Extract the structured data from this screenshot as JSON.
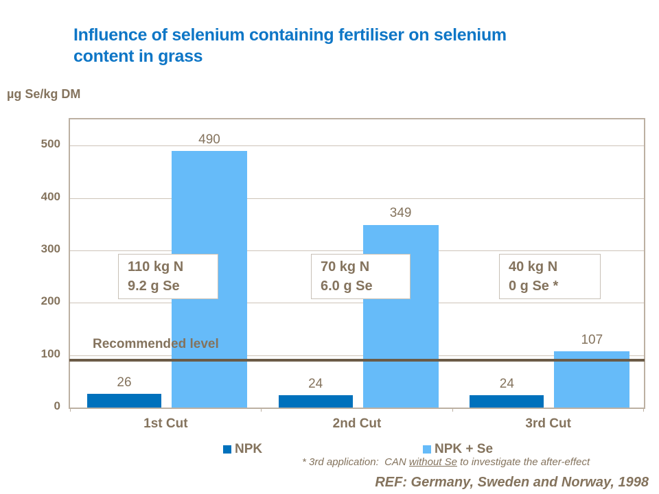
{
  "colors": {
    "title_blue": "#0E76C6",
    "text_brown": "#84735D",
    "dark_brown": "#6B5B47",
    "axis_gray": "#BCB0A2",
    "grid_gray": "#CDC3B8",
    "box_border": "#C8C0B6"
  },
  "slide": {
    "title": "Influence of selenium containing fertiliser on selenium content in grass",
    "y_axis_unit_label": "µg Se/kg DM",
    "footnote_prefix": "* 3rd application:  CAN ",
    "footnote_underlined": "without Se",
    "footnote_suffix": " to investigate the after-effect",
    "reference": "REF: Germany, Sweden and Norway, 1998"
  },
  "chart_data": {
    "type": "bar",
    "title": "Influence of selenium containing fertiliser on selenium content in grass",
    "ylabel": "µg Se/kg DM",
    "xlabel": "",
    "categories": [
      "1st Cut",
      "2nd Cut",
      "3rd Cut"
    ],
    "series": [
      {
        "name": "NPK",
        "color": "#0071BC",
        "values": [
          26,
          24,
          24
        ]
      },
      {
        "name": "NPK + Se",
        "color": "#66BBF9",
        "values": [
          490,
          349,
          107
        ]
      }
    ],
    "ylim": [
      0,
      550
    ],
    "yticks": [
      0,
      100,
      200,
      300,
      400,
      500
    ],
    "grid": true,
    "legend_position": "bottom",
    "reference_line": {
      "label": "Recommended level",
      "value": 90
    },
    "annotations": [
      {
        "category": "1st Cut",
        "lines": [
          "110 kg N",
          "9.2 g Se"
        ]
      },
      {
        "category": "2nd Cut",
        "lines": [
          "70 kg N",
          "6.0 g Se"
        ]
      },
      {
        "category": "3rd Cut",
        "lines": [
          "40 kg N",
          "0 g Se *"
        ]
      }
    ],
    "footnote": "* 3rd application:  CAN without Se to investigate the after-effect",
    "source": "REF: Germany, Sweden and Norway, 1998"
  }
}
